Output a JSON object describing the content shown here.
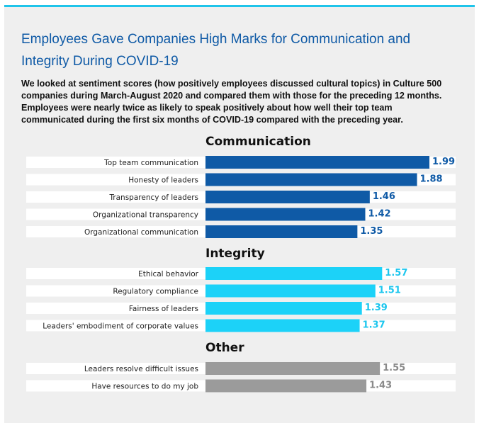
{
  "title": "Employees Gave Companies High Marks for Communication and Integrity During COVID-19",
  "description": "We looked at sentiment scores (how positively employees discussed cultural topics) in Culture 500 companies during March-August 2020 and compared them with those for the preceding 12 months. Employees were nearly twice as likely to speak positively about how well their top team communicated during the first six months of COVID-19 compared with the preceding year.",
  "chart_data": {
    "type": "bar",
    "orientation": "horizontal",
    "title": "Employees Gave Companies High Marks for Communication and Integrity During COVID-19",
    "xlim": [
      0,
      2.1
    ],
    "grid": false,
    "groups": [
      {
        "name": "Communication",
        "color": "#0f5aa6",
        "label_color": "#0f5aa6",
        "categories": [
          "Top team communication",
          "Honesty of leaders",
          "Transparency of leaders",
          "Organizational transparency",
          "Organizational communication"
        ],
        "values": [
          1.99,
          1.88,
          1.46,
          1.42,
          1.35
        ]
      },
      {
        "name": "Integrity",
        "color": "#1cd2f8",
        "label_color": "#1cc6ee",
        "categories": [
          "Ethical behavior",
          "Regulatory compliance",
          "Fairness of leaders",
          "Leaders' embodiment of corporate values"
        ],
        "values": [
          1.57,
          1.51,
          1.39,
          1.37
        ]
      },
      {
        "name": "Other",
        "color": "#9b9b9b",
        "label_color": "#8a8a8a",
        "categories": [
          "Leaders resolve difficult issues",
          "Have resources to do my job"
        ],
        "values": [
          1.55,
          1.43
        ]
      }
    ]
  }
}
